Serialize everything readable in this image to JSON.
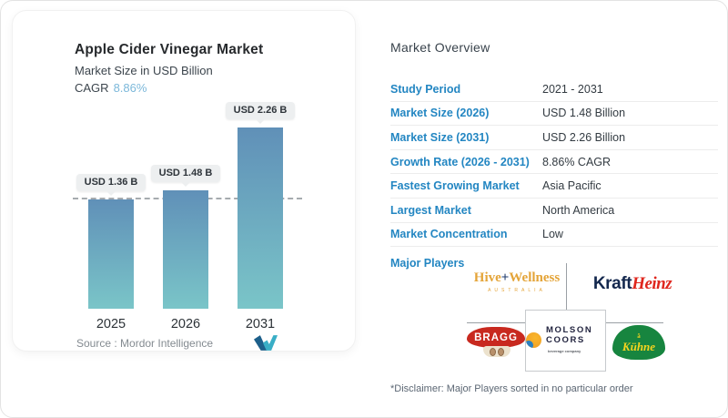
{
  "chart_card": {
    "title": "Apple Cider Vinegar Market",
    "subtitle": "Market Size in USD Billion",
    "cagr_label": "CAGR",
    "cagr_value": "8.86%",
    "source_label": "Source :  Mordor Intelligence"
  },
  "chart_data": {
    "type": "bar",
    "title": "Apple Cider Vinegar Market",
    "subtitle": "Market Size in USD Billion",
    "unit": "USD Billion",
    "categories": [
      "2025",
      "2026",
      "2031"
    ],
    "values": [
      1.36,
      1.48,
      2.26
    ],
    "bar_labels": [
      "USD 1.36 B",
      "USD 1.48 B",
      "USD 2.26 B"
    ],
    "cagr": "8.86%",
    "ylim": [
      0,
      2.58
    ],
    "reference_line_value": 1.36,
    "reference_line_style": "dashed",
    "grid": false,
    "legend": false,
    "bar_gradient_top": "#6090b8",
    "bar_gradient_bottom": "#7ac5c8"
  },
  "overview": {
    "title": "Market Overview",
    "rows": [
      {
        "label": "Study Period",
        "value": "2021 - 2031"
      },
      {
        "label": "Market Size (2026)",
        "value": "USD 1.48 Billion"
      },
      {
        "label": "Market Size (2031)",
        "value": "USD 2.26 Billion"
      },
      {
        "label": "Growth Rate (2026 - 2031)",
        "value": "8.86% CAGR"
      },
      {
        "label": "Fastest Growing Market",
        "value": "Asia Pacific"
      },
      {
        "label": "Largest Market",
        "value": "North America"
      },
      {
        "label": "Market Concentration",
        "value": "Low"
      }
    ],
    "major_players_label": "Major Players",
    "players": [
      "Hive+Wellness Australia",
      "Kraft Heinz",
      "Bragg",
      "Molson Coors Beverage Company",
      "Kühne"
    ],
    "disclaimer": "*Disclaimer: Major Players sorted in no particular order",
    "accent_color": "#2386c2"
  },
  "logos": {
    "hive_wellness": {
      "part1": "Hive",
      "plus": "+",
      "part2": "Wellness",
      "line2": "AUSTRALIA"
    },
    "kraft_heinz": {
      "part1": "Kraft",
      "part2": "Heinz"
    },
    "bragg": {
      "text": "BRAGG"
    },
    "molson_coors": {
      "line1": "MOLSON",
      "line2": "COORS",
      "tagline": "beverage company"
    },
    "kuehne": {
      "emblem": "ä",
      "text": "Kühne"
    }
  }
}
